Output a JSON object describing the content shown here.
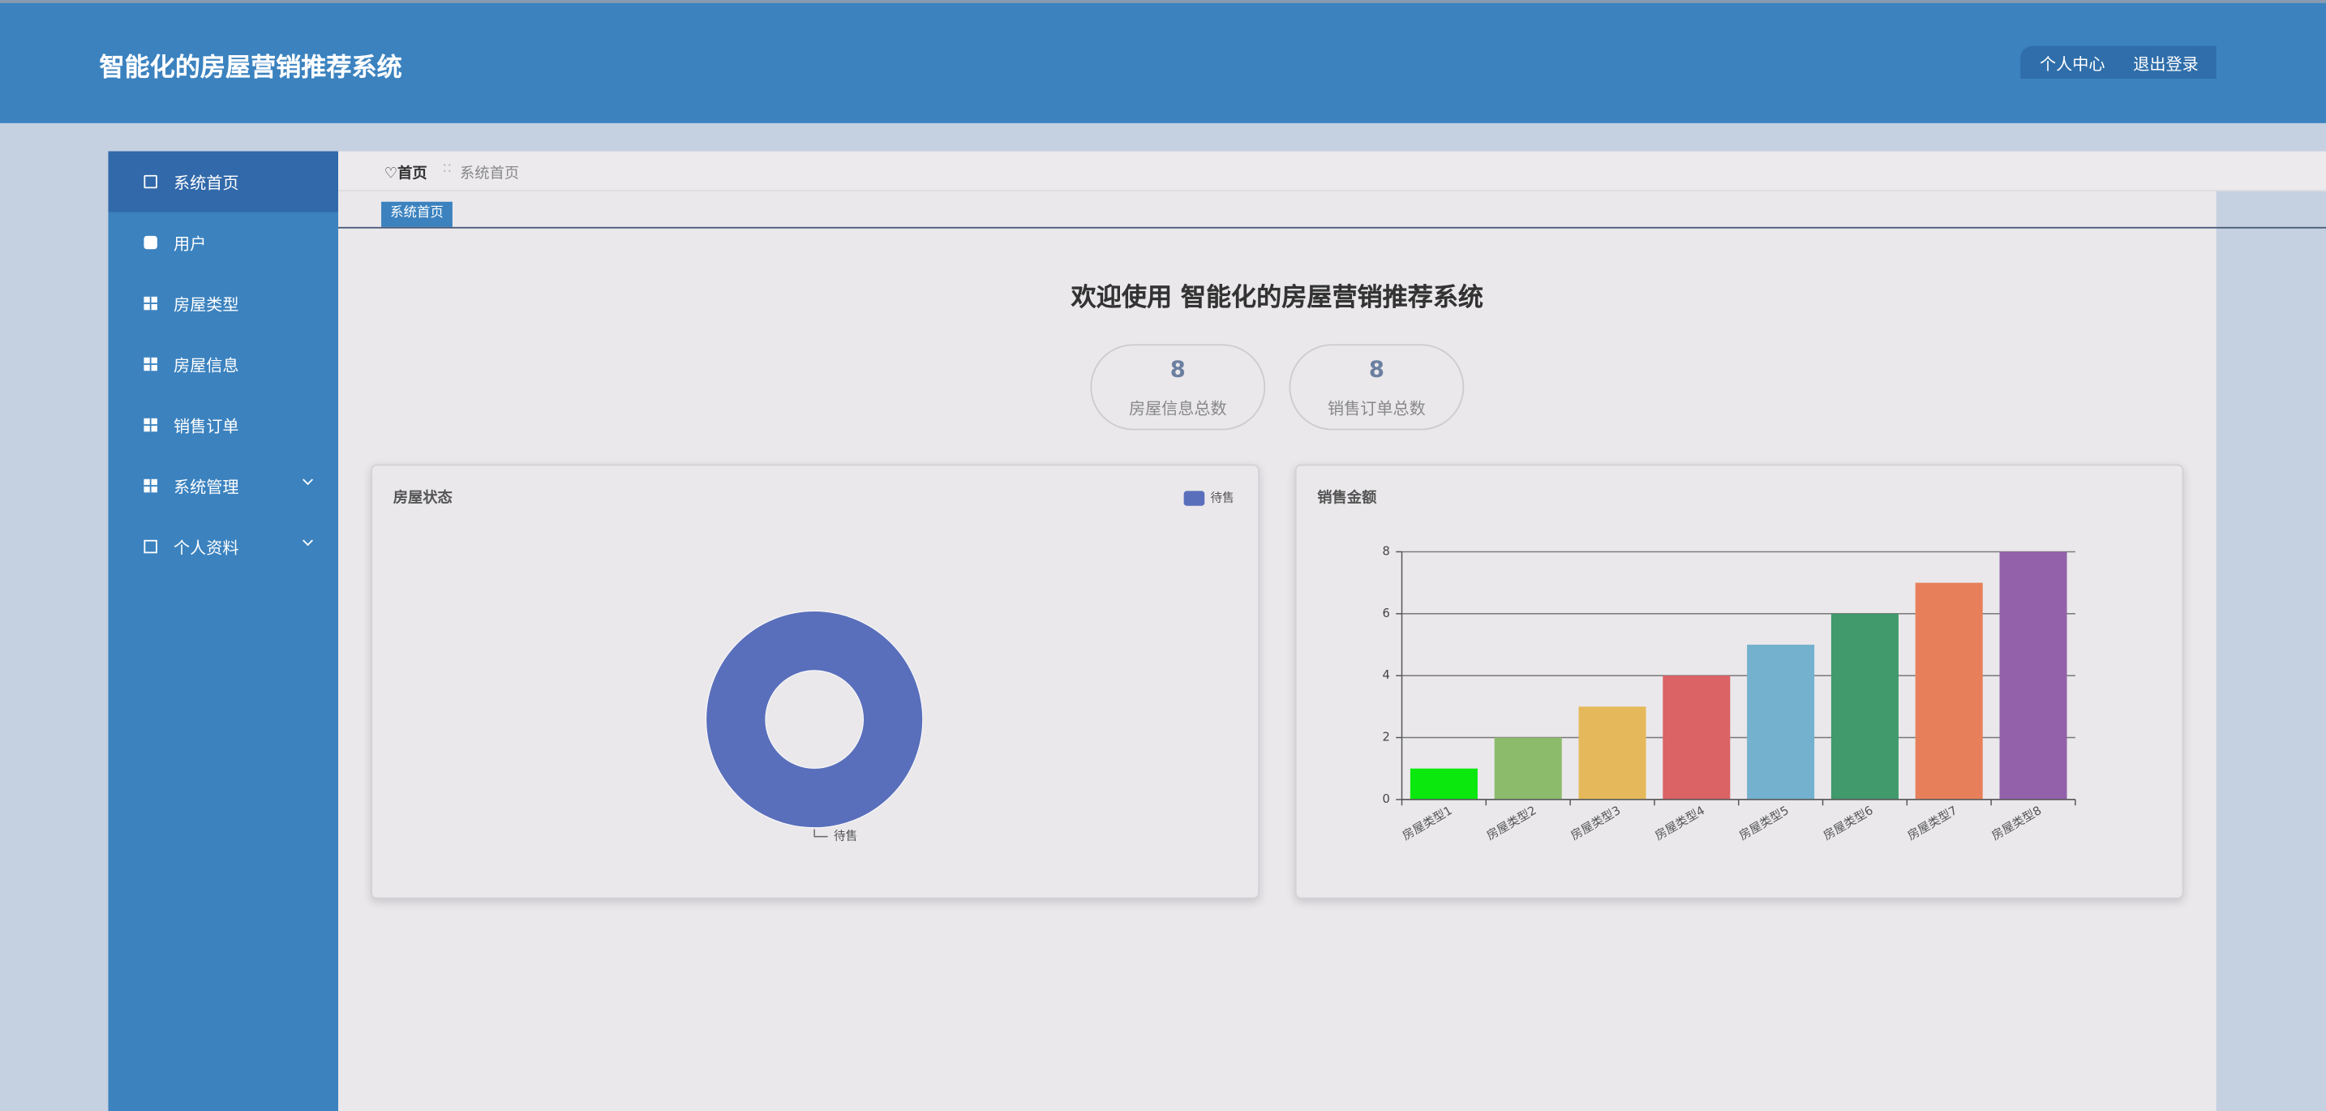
{
  "header": {
    "title": "智能化的房屋营销推荐系统",
    "links": [
      "个人中心",
      "退出登录"
    ]
  },
  "sidebar": {
    "items": [
      "系统首页",
      "用户",
      "房屋类型",
      "房屋信息",
      "销售订单",
      "系统管理",
      "个人资料"
    ]
  },
  "breadcrumb": {
    "home": "首页",
    "current": "系统首页"
  },
  "tab": "系统首页",
  "welcome": "欢迎使用 智能化的房屋营销推荐系统",
  "stats": [
    {
      "value": "8",
      "label": "房屋信息总数"
    },
    {
      "value": "8",
      "label": "销售订单总数"
    }
  ],
  "chart_data": [
    {
      "type": "pie",
      "title": "房屋状态",
      "categories": [
        "待售"
      ],
      "values": [
        8
      ],
      "colors": [
        "#5a6fbb"
      ],
      "donut": true,
      "legend": "top-right"
    },
    {
      "type": "bar",
      "title": "销售金额",
      "categories": [
        "房屋类型1",
        "房屋类型2",
        "房屋类型3",
        "房屋类型4",
        "房屋类型5",
        "房屋类型6",
        "房屋类型7",
        "房屋类型8"
      ],
      "values": [
        1,
        2,
        3,
        4,
        5,
        6,
        7,
        8
      ],
      "colors": [
        "#0ae80e",
        "#8dbb6c",
        "#e5b95b",
        "#db6265",
        "#73b1ce",
        "#409a6c",
        "#e7805a",
        "#9360aa"
      ],
      "ylim": [
        0,
        8
      ],
      "yticks": [
        0,
        2,
        4,
        6,
        8
      ],
      "grid": true
    }
  ]
}
